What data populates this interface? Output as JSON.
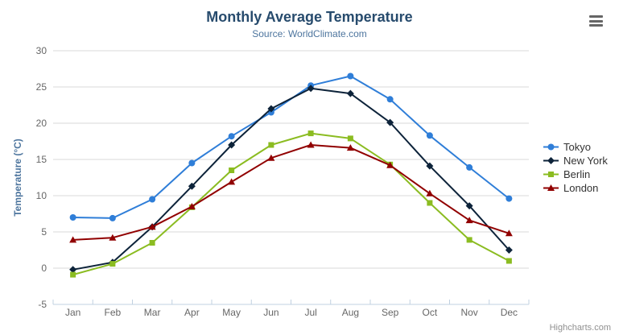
{
  "credits": "Highcharts.com",
  "chart_data": {
    "type": "line",
    "title": "Monthly Average Temperature",
    "subtitle": "Source: WorldClimate.com",
    "categories": [
      "Jan",
      "Feb",
      "Mar",
      "Apr",
      "May",
      "Jun",
      "Jul",
      "Aug",
      "Sep",
      "Oct",
      "Nov",
      "Dec"
    ],
    "series": [
      {
        "name": "Tokyo",
        "color": "#2f7ed8",
        "marker": "circle",
        "values": [
          7.0,
          6.9,
          9.5,
          14.5,
          18.2,
          21.5,
          25.2,
          26.5,
          23.3,
          18.3,
          13.9,
          9.6
        ]
      },
      {
        "name": "New York",
        "color": "#0d233a",
        "marker": "diamond",
        "values": [
          -0.2,
          0.8,
          5.7,
          11.3,
          17.0,
          22.0,
          24.8,
          24.1,
          20.1,
          14.1,
          8.6,
          2.5
        ]
      },
      {
        "name": "Berlin",
        "color": "#8bbc21",
        "marker": "square",
        "values": [
          -0.9,
          0.6,
          3.5,
          8.4,
          13.5,
          17.0,
          18.6,
          17.9,
          14.3,
          9.0,
          3.9,
          1.0
        ]
      },
      {
        "name": "London",
        "color": "#910000",
        "marker": "triangle",
        "values": [
          3.9,
          4.2,
          5.7,
          8.5,
          11.9,
          15.2,
          17.0,
          16.6,
          14.2,
          10.3,
          6.6,
          4.8
        ]
      }
    ],
    "xlabel": "",
    "ylabel": "Temperature (°C)",
    "ylim": [
      -5,
      30
    ],
    "ytick_step": 5,
    "grid": true,
    "legend_position": "right",
    "colors": {
      "title": "#274b6d",
      "subtitle": "#4d759e",
      "axis_title": "#4d759e",
      "tick_label": "#666666",
      "grid_line": "#d8d8d8",
      "axis_line": "#c0d0e0",
      "legend_text": "#333333",
      "credits": "#909090",
      "background": "#ffffff"
    }
  }
}
